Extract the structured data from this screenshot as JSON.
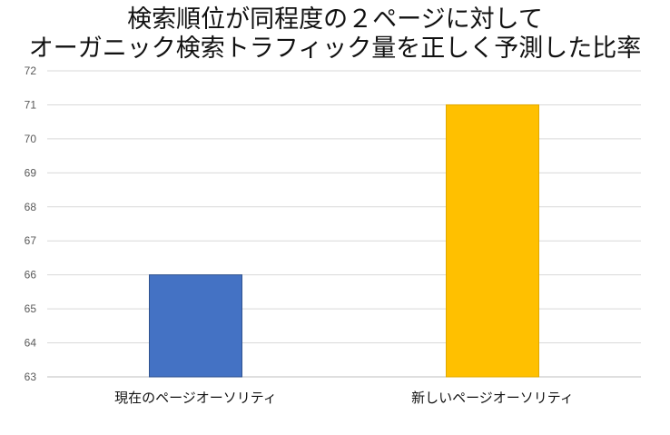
{
  "chart_data": {
    "type": "bar",
    "title_lines": [
      "検索順位が同程度の２ページに対して",
      "オーガニック検索トラフィック量を正しく予測した比率"
    ],
    "categories": [
      "現在のページオーソリティ",
      "新しいページオーソリティ"
    ],
    "values": [
      66,
      71
    ],
    "colors": [
      "#4472c4",
      "#ffc000"
    ],
    "ylim": [
      63,
      72
    ],
    "yticks": [
      63,
      64,
      65,
      66,
      67,
      68,
      69,
      70,
      71,
      72
    ],
    "grid": true,
    "legend": "none"
  }
}
